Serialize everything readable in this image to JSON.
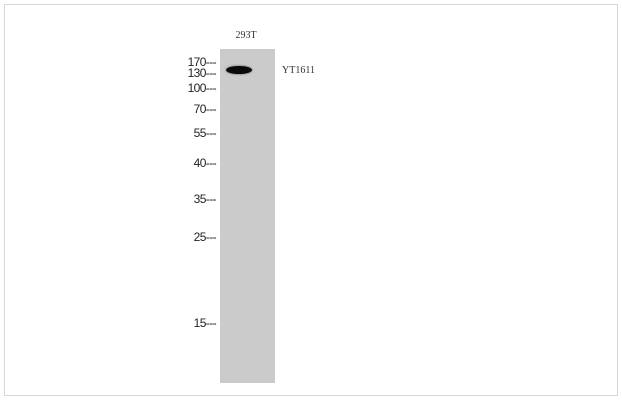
{
  "blot": {
    "sample_label": "293T",
    "target_label": "YT1611",
    "markers": [
      {
        "label": "170---"
      },
      {
        "label": "130---"
      },
      {
        "label": "100---"
      },
      {
        "label": "70---"
      },
      {
        "label": "55---"
      },
      {
        "label": "40---"
      },
      {
        "label": "35---"
      },
      {
        "label": "25---"
      },
      {
        "label": "15---"
      }
    ],
    "colors": {
      "lane": "#cbcbcb",
      "band": "#0a0a0a"
    }
  }
}
